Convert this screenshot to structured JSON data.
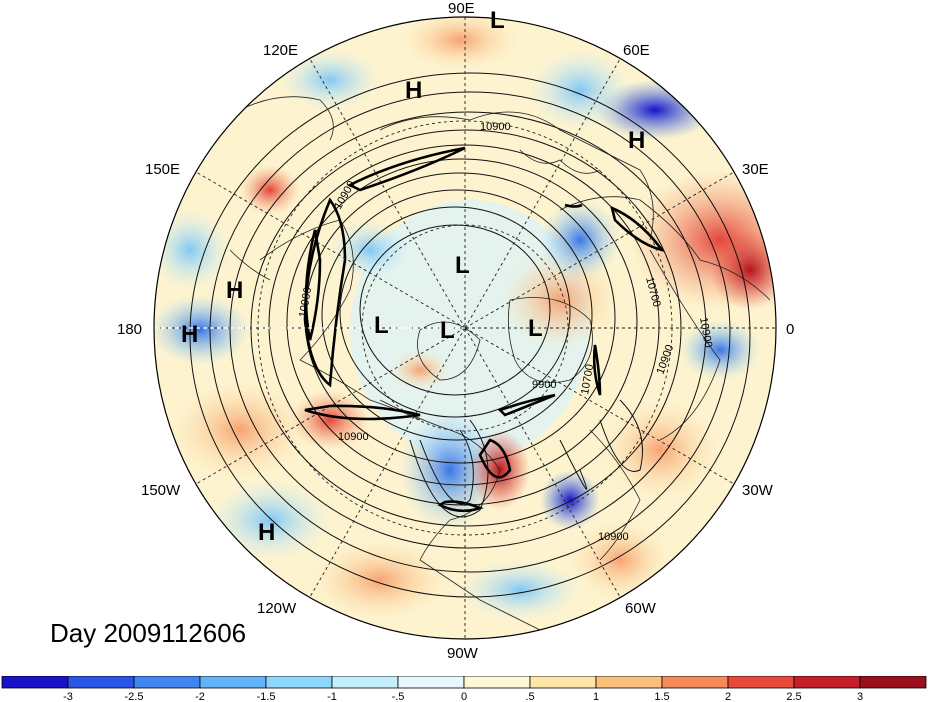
{
  "title": "Day 2009112606",
  "lon_labels": [
    "90E",
    "60E",
    "30E",
    "0",
    "30W",
    "60W",
    "90W",
    "120W",
    "150W",
    "180",
    "150E",
    "120E"
  ],
  "pressure_centers": [
    {
      "label": "H",
      "region": "northern Siberia"
    },
    {
      "label": "L",
      "region": "North Atlantic near 90E edge"
    },
    {
      "label": "H",
      "region": "western Russia"
    },
    {
      "label": "H",
      "region": "Aleutian region"
    },
    {
      "label": "H",
      "region": "dateline subtropics"
    },
    {
      "label": "L",
      "region": "polar cap"
    },
    {
      "label": "L",
      "region": "Bering Sea"
    },
    {
      "label": "L",
      "region": "Arctic Canada"
    },
    {
      "label": "L",
      "region": "Greenland Sea"
    },
    {
      "label": "H",
      "region": "northeast Pacific"
    }
  ],
  "contour_labels": [
    "10900",
    "10900",
    "10900",
    "10900",
    "10900",
    "10700",
    "10900",
    "9900",
    "10700",
    "10900"
  ],
  "colorbar": {
    "ticks": [
      "-3",
      "-2.5",
      "-2",
      "-1.5",
      "-1",
      "-.5",
      "0",
      ".5",
      "1",
      "1.5",
      "2",
      "2.5",
      "3"
    ],
    "colors": [
      "#1a12c8",
      "#2a55e6",
      "#3f86f0",
      "#62b3f7",
      "#8fd6fb",
      "#c4eefc",
      "#e6f8fd",
      "#fdf8d6",
      "#fde7a8",
      "#fbc07c",
      "#f68b5a",
      "#e8483a",
      "#c81d2a",
      "#9a0f1c"
    ]
  }
}
